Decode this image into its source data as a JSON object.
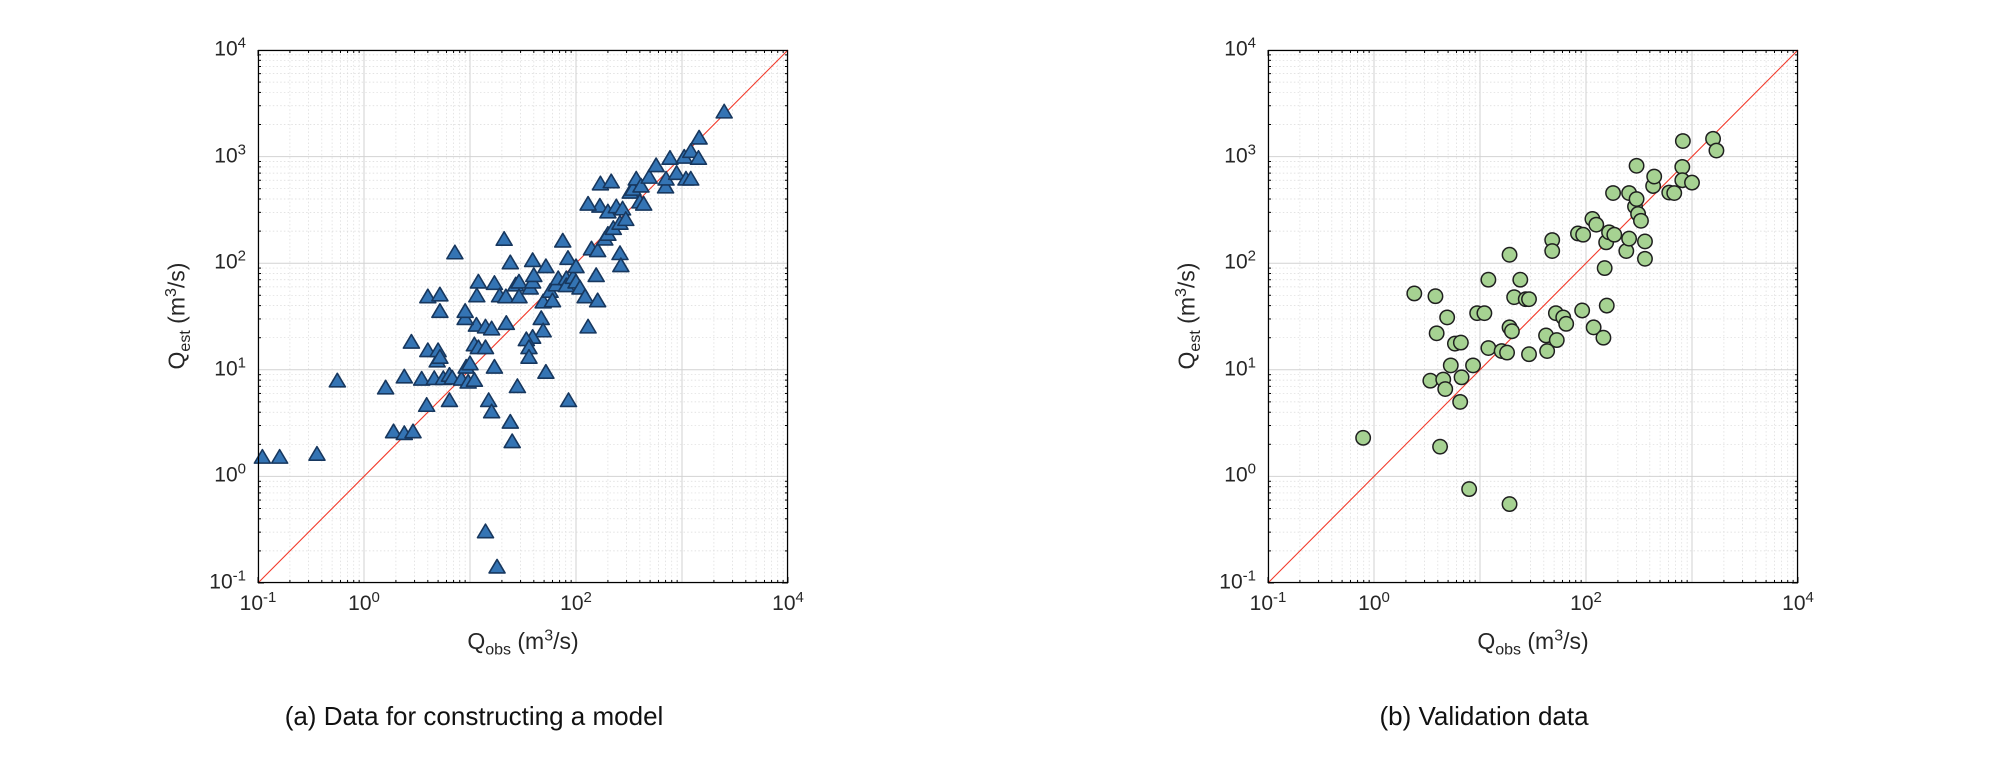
{
  "figure": {
    "background": "#ffffff"
  },
  "chart_data": [
    {
      "type": "scatter",
      "panel": "a",
      "caption": "(a) Data for constructing a model",
      "xlabel_parts": {
        "base": "Q",
        "sub": "obs",
        "mid": " (m",
        "sup": "3",
        "end": "/s)"
      },
      "ylabel_parts": {
        "base": "Q",
        "sub": "est",
        "mid": " (m",
        "sup": "3",
        "end": "/s)"
      },
      "xscale": "log",
      "yscale": "log",
      "xlim": [
        0.1,
        10000
      ],
      "ylim": [
        0.1,
        10000
      ],
      "x_tick_exponents": [
        -1,
        0,
        2,
        4
      ],
      "y_tick_exponents": [
        -1,
        0,
        1,
        2,
        3,
        4
      ],
      "grid": {
        "major": true,
        "minor": true,
        "major_color": "#d2d2d2",
        "minor_color": "#dadada"
      },
      "ref_line": {
        "x1": 0.1,
        "y1": 0.1,
        "x2": 10000,
        "y2": 10000,
        "color": "#f23a2b"
      },
      "marker": {
        "shape": "triangle",
        "fill": "#3474b4",
        "edge": "#17375e"
      },
      "points": [
        [
          0.11,
          1.5
        ],
        [
          0.16,
          1.5
        ],
        [
          0.36,
          1.6
        ],
        [
          0.56,
          7.8
        ],
        [
          1.6,
          6.7
        ],
        [
          1.9,
          2.6
        ],
        [
          2.4,
          2.5
        ],
        [
          2.9,
          2.6
        ],
        [
          2.4,
          8.5
        ],
        [
          2.8,
          18
        ],
        [
          3.5,
          8.1
        ],
        [
          3.9,
          4.6
        ],
        [
          4.0,
          15
        ],
        [
          4.6,
          8.2
        ],
        [
          4.9,
          12
        ],
        [
          5.0,
          15
        ],
        [
          5.2,
          13
        ],
        [
          5.6,
          8.2
        ],
        [
          6.4,
          8.8
        ],
        [
          6.8,
          8.3
        ],
        [
          6.4,
          5.1
        ],
        [
          8.3,
          8.1
        ],
        [
          9.6,
          7.6
        ],
        [
          9.2,
          10.5
        ],
        [
          10,
          11.3
        ],
        [
          11,
          7.9
        ],
        [
          11,
          17
        ],
        [
          12,
          16
        ],
        [
          14,
          16
        ],
        [
          11.5,
          26
        ],
        [
          14,
          25
        ],
        [
          16,
          24
        ],
        [
          9,
          30
        ],
        [
          17,
          10.5
        ],
        [
          15,
          5.1
        ],
        [
          16,
          4.0
        ],
        [
          24,
          3.2
        ],
        [
          25,
          2.1
        ],
        [
          22,
          27
        ],
        [
          28,
          6.9
        ],
        [
          14,
          0.3
        ],
        [
          18,
          0.14
        ],
        [
          7.2,
          124
        ],
        [
          21,
          166
        ],
        [
          24,
          100
        ],
        [
          12,
          66
        ],
        [
          11.6,
          49
        ],
        [
          17,
          64
        ],
        [
          19,
          49
        ],
        [
          21.8,
          48
        ],
        [
          27,
          62
        ],
        [
          29,
          66
        ],
        [
          4.0,
          48
        ],
        [
          5.2,
          50
        ],
        [
          5.2,
          35
        ],
        [
          9.0,
          35
        ],
        [
          29,
          48
        ],
        [
          47,
          30
        ],
        [
          49,
          23
        ],
        [
          39,
          20
        ],
        [
          34,
          19
        ],
        [
          36,
          16
        ],
        [
          36,
          13
        ],
        [
          52,
          9.4
        ],
        [
          130,
          25
        ],
        [
          85,
          5.1
        ],
        [
          37,
          58
        ],
        [
          39,
          66
        ],
        [
          39,
          105
        ],
        [
          40,
          76
        ],
        [
          49,
          43
        ],
        [
          52,
          92
        ],
        [
          57,
          54
        ],
        [
          60,
          44
        ],
        [
          65,
          62
        ],
        [
          68,
          71
        ],
        [
          75,
          160
        ],
        [
          81,
          71
        ],
        [
          81,
          61
        ],
        [
          84,
          110
        ],
        [
          94,
          73
        ],
        [
          100,
          92
        ],
        [
          100,
          66
        ],
        [
          109,
          58
        ],
        [
          122,
          48
        ],
        [
          140,
          135
        ],
        [
          155,
          76
        ],
        [
          160,
          130
        ],
        [
          160,
          44
        ],
        [
          168,
          340
        ],
        [
          170,
          550
        ],
        [
          187,
          167
        ],
        [
          200,
          300
        ],
        [
          200,
          185
        ],
        [
          215,
          575
        ],
        [
          225,
          210
        ],
        [
          240,
          335
        ],
        [
          260,
          235
        ],
        [
          260,
          122
        ],
        [
          265,
          94
        ],
        [
          275,
          320
        ],
        [
          295,
          255
        ],
        [
          325,
          460
        ],
        [
          345,
          490
        ],
        [
          370,
          610
        ],
        [
          400,
          372
        ],
        [
          410,
          525
        ],
        [
          435,
          355
        ],
        [
          490,
          635
        ],
        [
          130,
          355
        ],
        [
          570,
          815
        ],
        [
          700,
          515
        ],
        [
          707,
          610
        ],
        [
          770,
          955
        ],
        [
          890,
          690
        ],
        [
          1050,
          980
        ],
        [
          1090,
          610
        ],
        [
          1210,
          1110
        ],
        [
          1210,
          610
        ],
        [
          1430,
          955
        ],
        [
          1450,
          1480
        ],
        [
          2500,
          2600
        ]
      ]
    },
    {
      "type": "scatter",
      "panel": "b",
      "caption": "(b) Validation data",
      "xlabel_parts": {
        "base": "Q",
        "sub": "obs",
        "mid": " (m",
        "sup": "3",
        "end": "/s)"
      },
      "ylabel_parts": {
        "base": "Q",
        "sub": "est",
        "mid": " (m",
        "sup": "3",
        "end": "/s)"
      },
      "xscale": "log",
      "yscale": "log",
      "xlim": [
        0.1,
        10000
      ],
      "ylim": [
        0.1,
        10000
      ],
      "x_tick_exponents": [
        -1,
        0,
        2,
        4
      ],
      "y_tick_exponents": [
        -1,
        0,
        1,
        2,
        3,
        4
      ],
      "grid": {
        "major": true,
        "minor": true,
        "major_color": "#d2d2d2",
        "minor_color": "#dadada"
      },
      "ref_line": {
        "x1": 0.1,
        "y1": 0.1,
        "x2": 10000,
        "y2": 10000,
        "color": "#f23a2b"
      },
      "marker": {
        "shape": "circle",
        "fill": "#a6d292",
        "edge": "#1f1f1f"
      },
      "points": [
        [
          0.79,
          2.3
        ],
        [
          4.2,
          1.9
        ],
        [
          7.9,
          0.76
        ],
        [
          19,
          0.55
        ],
        [
          2.4,
          52
        ],
        [
          3.8,
          49
        ],
        [
          3.4,
          7.9
        ],
        [
          4.5,
          8.1
        ],
        [
          4.7,
          6.6
        ],
        [
          4.9,
          31
        ],
        [
          3.9,
          22
        ],
        [
          5.3,
          11
        ],
        [
          5.8,
          17.6
        ],
        [
          6.5,
          5.0
        ],
        [
          6.6,
          18
        ],
        [
          6.7,
          8.5
        ],
        [
          8.6,
          11
        ],
        [
          9.4,
          34
        ],
        [
          11,
          34
        ],
        [
          12,
          16
        ],
        [
          16,
          15
        ],
        [
          18,
          14.5
        ],
        [
          19,
          25
        ],
        [
          20,
          23
        ],
        [
          21,
          48
        ],
        [
          24,
          70
        ],
        [
          12,
          70
        ],
        [
          19,
          120
        ],
        [
          27,
          46
        ],
        [
          29,
          46
        ],
        [
          29,
          14
        ],
        [
          42,
          21
        ],
        [
          43,
          15
        ],
        [
          48,
          165
        ],
        [
          48,
          130
        ],
        [
          52,
          34
        ],
        [
          53,
          19
        ],
        [
          61,
          31
        ],
        [
          65,
          27
        ],
        [
          84,
          190
        ],
        [
          92,
          36
        ],
        [
          94,
          185
        ],
        [
          115,
          260
        ],
        [
          118,
          25
        ],
        [
          125,
          230
        ],
        [
          146,
          20
        ],
        [
          150,
          90
        ],
        [
          155,
          157
        ],
        [
          157,
          40
        ],
        [
          165,
          195
        ],
        [
          180,
          455
        ],
        [
          185,
          185
        ],
        [
          240,
          130
        ],
        [
          255,
          455
        ],
        [
          255,
          170
        ],
        [
          290,
          340
        ],
        [
          300,
          820
        ],
        [
          300,
          400
        ],
        [
          310,
          290
        ],
        [
          330,
          250
        ],
        [
          360,
          160
        ],
        [
          360,
          110
        ],
        [
          430,
          530
        ],
        [
          440,
          650
        ],
        [
          610,
          460
        ],
        [
          680,
          455
        ],
        [
          810,
          800
        ],
        [
          810,
          600
        ],
        [
          820,
          1400
        ],
        [
          1000,
          570
        ],
        [
          1580,
          1470
        ],
        [
          1700,
          1140
        ]
      ]
    }
  ]
}
